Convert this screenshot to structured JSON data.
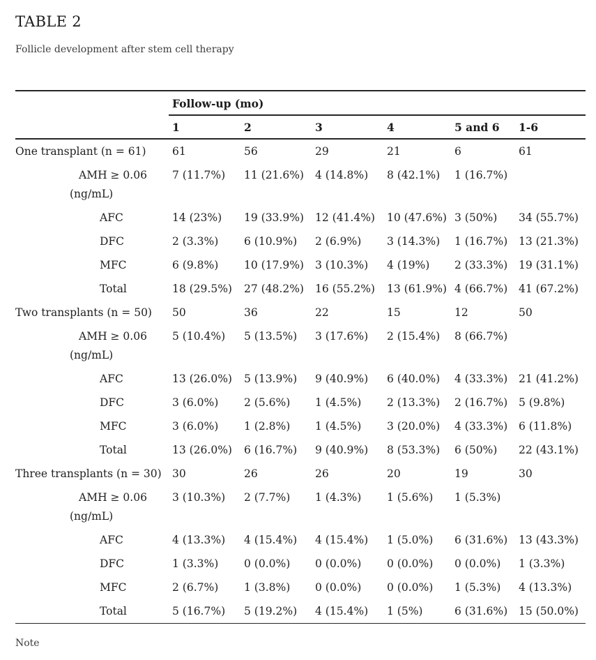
{
  "page": {
    "title": "TABLE 2",
    "subtitle": "Follicle development after stem cell therapy",
    "note": "Note"
  },
  "table": {
    "group_header": "Follow-up (mo)",
    "columns": [
      "1",
      "2",
      "3",
      "4",
      "5 and 6",
      "1-6"
    ],
    "sections": [
      {
        "label": "One transplant (n = 61)",
        "counts": [
          "61",
          "56",
          "29",
          "21",
          "6",
          "61"
        ],
        "rows": [
          {
            "label": "AMH ≥ 0.06",
            "label2": "(ng/mL)",
            "indent": 1,
            "values": [
              "7 (11.7%)",
              "11 (21.6%)",
              "4 (14.8%)",
              "8 (42.1%)",
              "1 (16.7%)",
              ""
            ]
          },
          {
            "label": "AFC",
            "indent": 2,
            "values": [
              "14 (23%)",
              "19 (33.9%)",
              "12 (41.4%)",
              "10 (47.6%)",
              "3 (50%)",
              "34 (55.7%)"
            ]
          },
          {
            "label": "DFC",
            "indent": 2,
            "values": [
              "2 (3.3%)",
              "6 (10.9%)",
              "2 (6.9%)",
              "3 (14.3%)",
              "1 (16.7%)",
              "13 (21.3%)"
            ]
          },
          {
            "label": "MFC",
            "indent": 2,
            "values": [
              "6 (9.8%)",
              "10 (17.9%)",
              "3 (10.3%)",
              "4 (19%)",
              "2 (33.3%)",
              "19 (31.1%)"
            ]
          },
          {
            "label": "Total",
            "indent": 2,
            "values": [
              "18 (29.5%)",
              "27 (48.2%)",
              "16 (55.2%)",
              "13 (61.9%)",
              "4 (66.7%)",
              "41 (67.2%)"
            ]
          }
        ]
      },
      {
        "label": "Two transplants (n = 50)",
        "counts": [
          "50",
          "36",
          "22",
          "15",
          "12",
          "50"
        ],
        "rows": [
          {
            "label": "AMH ≥ 0.06",
            "label2": "(ng/mL)",
            "indent": 1,
            "values": [
              "5 (10.4%)",
              "5 (13.5%)",
              "3 (17.6%)",
              "2 (15.4%)",
              "8 (66.7%)",
              ""
            ]
          },
          {
            "label": "AFC",
            "indent": 2,
            "values": [
              "13 (26.0%)",
              "5 (13.9%)",
              "9 (40.9%)",
              "6 (40.0%)",
              "4 (33.3%)",
              "21 (41.2%)"
            ]
          },
          {
            "label": "DFC",
            "indent": 2,
            "values": [
              "3 (6.0%)",
              "2 (5.6%)",
              "1 (4.5%)",
              "2 (13.3%)",
              "2 (16.7%)",
              "5 (9.8%)"
            ]
          },
          {
            "label": "MFC",
            "indent": 2,
            "values": [
              "3 (6.0%)",
              "1 (2.8%)",
              "1 (4.5%)",
              "3 (20.0%)",
              "4 (33.3%)",
              "6 (11.8%)"
            ]
          },
          {
            "label": "Total",
            "indent": 2,
            "values": [
              "13 (26.0%)",
              "6 (16.7%)",
              "9 (40.9%)",
              "8 (53.3%)",
              "6 (50%)",
              "22 (43.1%)"
            ]
          }
        ]
      },
      {
        "label": "Three transplants (n = 30)",
        "counts": [
          "30",
          "26",
          "26",
          "20",
          "19",
          "30"
        ],
        "rows": [
          {
            "label": "AMH ≥ 0.06",
            "label2": "(ng/mL)",
            "indent": 1,
            "values": [
              "3 (10.3%)",
              "2 (7.7%)",
              "1 (4.3%)",
              "1 (5.6%)",
              "1 (5.3%)",
              ""
            ]
          },
          {
            "label": "AFC",
            "indent": 2,
            "values": [
              "4 (13.3%)",
              "4 (15.4%)",
              "4 (15.4%)",
              "1 (5.0%)",
              "6 (31.6%)",
              "13 (43.3%)"
            ]
          },
          {
            "label": "DFC",
            "indent": 2,
            "values": [
              "1 (3.3%)",
              "0 (0.0%)",
              "0 (0.0%)",
              "0 (0.0%)",
              "0 (0.0%)",
              "1 (3.3%)"
            ]
          },
          {
            "label": "MFC",
            "indent": 2,
            "values": [
              "2 (6.7%)",
              "1 (3.8%)",
              "0 (0.0%)",
              "0 (0.0%)",
              "1 (5.3%)",
              "4 (13.3%)"
            ]
          },
          {
            "label": "Total",
            "indent": 2,
            "values": [
              "5 (16.7%)",
              "5 (19.2%)",
              "4 (15.4%)",
              "1 (5%)",
              "6 (31.6%)",
              "15 (50.0%)"
            ]
          }
        ]
      }
    ]
  }
}
